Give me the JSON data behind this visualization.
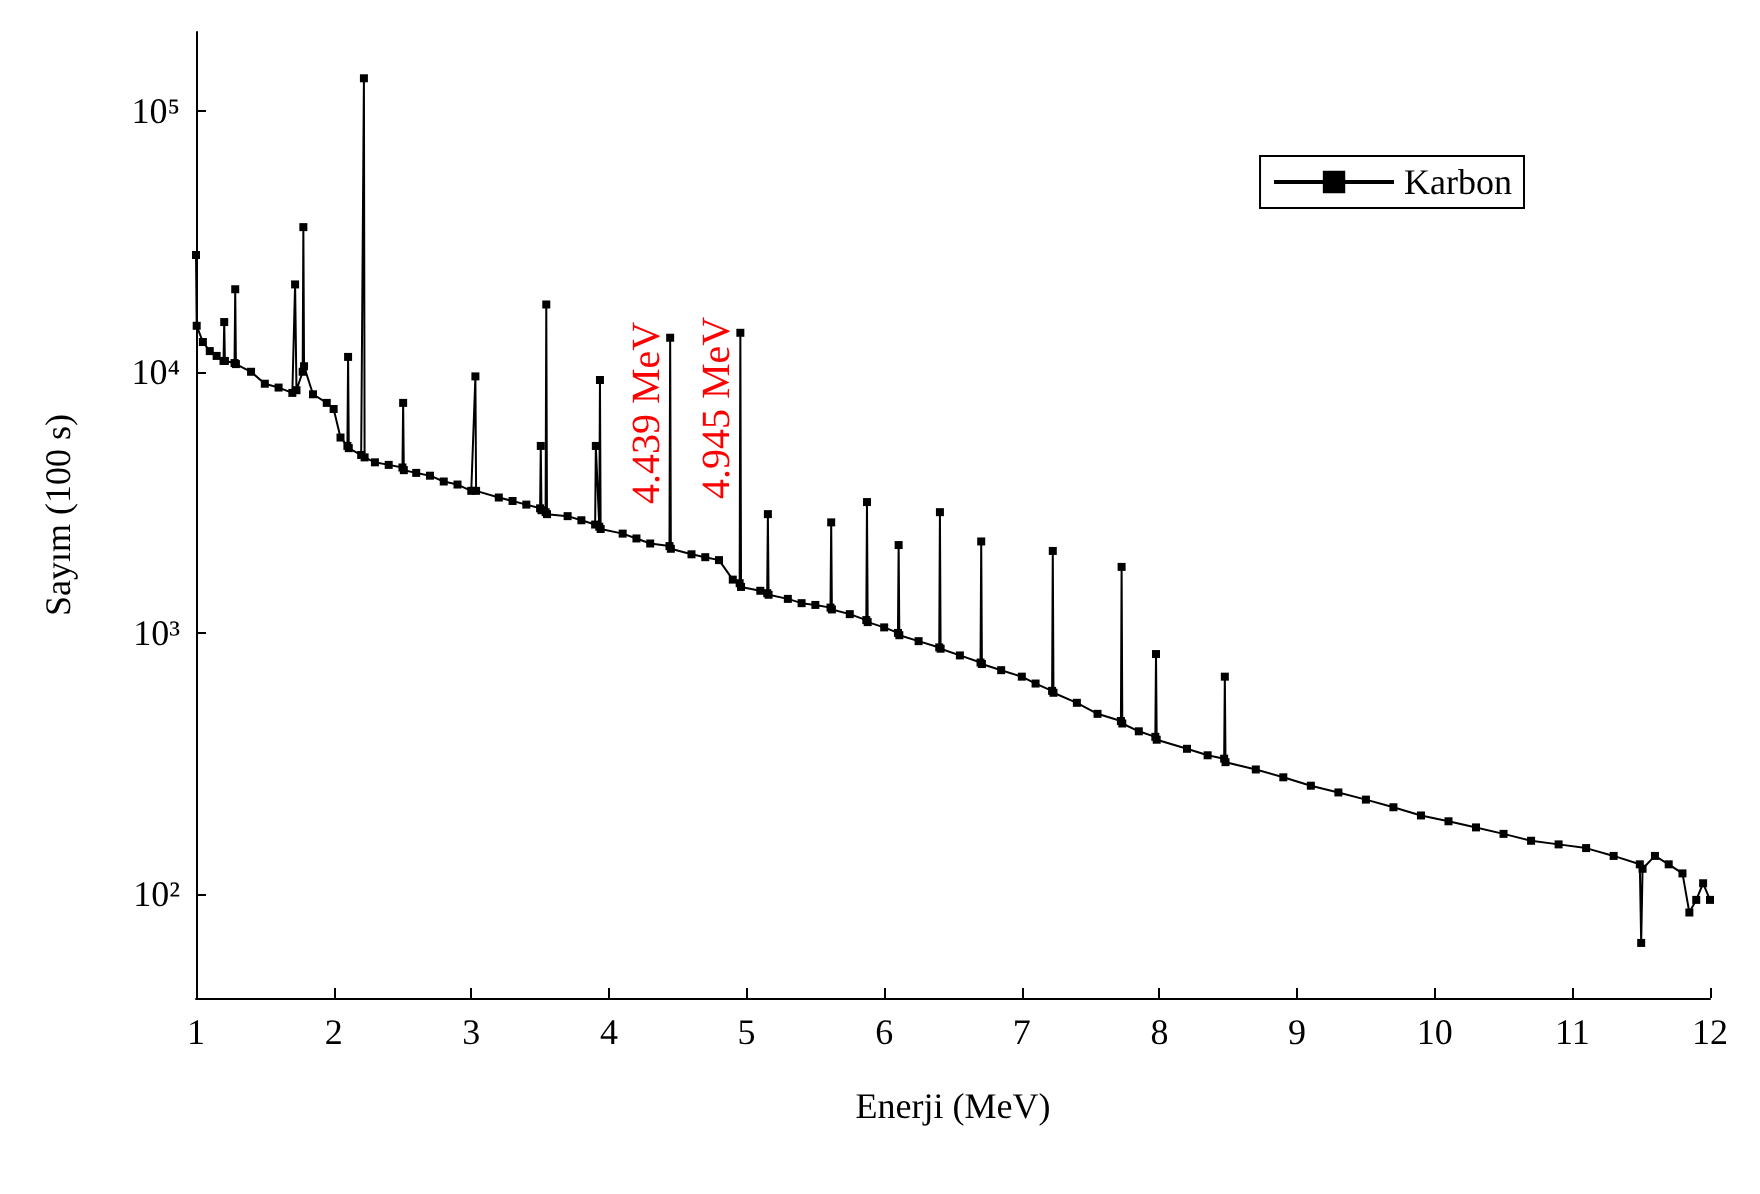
{
  "chart_data": {
    "type": "line",
    "xlabel": "Enerji (MeV)",
    "ylabel": "Sayım (100 s)",
    "log": "y",
    "grid": false,
    "legend": "top right",
    "marker": "square",
    "line_style": "solid",
    "xlim": [
      1,
      12
    ],
    "xticks": [
      1,
      2,
      3,
      4,
      5,
      6,
      7,
      8,
      9,
      10,
      11,
      12
    ],
    "ylim": [
      40,
      200000
    ],
    "yticks": [
      {
        "value": 100,
        "label": "10²"
      },
      {
        "value": 1000,
        "label": "10³"
      },
      {
        "value": 10000,
        "label": "10⁴"
      },
      {
        "value": 100000,
        "label": "10⁵"
      }
    ],
    "annotations": [
      {
        "text": "4.439 MeV",
        "x": 4.439,
        "y": 13500
      },
      {
        "text": "4.945 MeV",
        "x": 4.945,
        "y": 14100
      }
    ],
    "series": [
      {
        "name": "Karbon",
        "color": "#000000",
        "x": [
          1.0,
          1.005,
          1.05,
          1.1,
          1.15,
          1.2,
          1.205,
          1.21,
          1.28,
          1.285,
          1.29,
          1.4,
          1.5,
          1.6,
          1.7,
          1.72,
          1.73,
          1.775,
          1.78,
          1.785,
          1.85,
          1.95,
          2.0,
          2.05,
          2.1,
          2.105,
          2.11,
          2.2,
          2.22,
          2.225,
          2.3,
          2.4,
          2.5,
          2.505,
          2.51,
          2.6,
          2.7,
          2.8,
          2.9,
          3.0,
          3.03,
          3.035,
          3.2,
          3.3,
          3.4,
          3.5,
          3.505,
          3.51,
          3.54,
          3.545,
          3.55,
          3.7,
          3.8,
          3.9,
          3.905,
          3.93,
          3.935,
          3.94,
          4.1,
          4.2,
          4.3,
          4.44,
          4.445,
          4.45,
          4.6,
          4.7,
          4.8,
          4.9,
          4.95,
          4.955,
          4.96,
          5.1,
          5.15,
          5.155,
          5.16,
          5.3,
          5.4,
          5.5,
          5.61,
          5.615,
          5.62,
          5.75,
          5.87,
          5.875,
          5.88,
          6.0,
          6.1,
          6.105,
          6.11,
          6.25,
          6.4,
          6.405,
          6.41,
          6.55,
          6.7,
          6.705,
          6.71,
          6.85,
          7.0,
          7.1,
          7.22,
          7.225,
          7.23,
          7.4,
          7.55,
          7.72,
          7.725,
          7.73,
          7.85,
          7.97,
          7.975,
          7.98,
          8.2,
          8.35,
          8.47,
          8.475,
          8.48,
          8.7,
          8.9,
          9.1,
          9.3,
          9.5,
          9.7,
          9.9,
          10.1,
          10.3,
          10.5,
          10.7,
          10.9,
          11.1,
          11.3,
          11.49,
          11.5,
          11.51,
          11.6,
          11.7,
          11.8,
          11.85,
          11.9,
          11.95,
          12.0
        ],
        "values": [
          28000,
          15000,
          13000,
          12000,
          11500,
          11000,
          15500,
          11000,
          10800,
          20700,
          10700,
          10000,
          9000,
          8700,
          8300,
          21600,
          8500,
          10000,
          35800,
          10500,
          8200,
          7600,
          7200,
          5600,
          5200,
          11400,
          5100,
          4800,
          133000,
          4700,
          4500,
          4400,
          4300,
          7600,
          4200,
          4100,
          4000,
          3800,
          3700,
          3500,
          9600,
          3500,
          3300,
          3200,
          3100,
          3000,
          5200,
          2950,
          2900,
          18100,
          2850,
          2800,
          2700,
          2600,
          5200,
          2550,
          9300,
          2500,
          2400,
          2300,
          2200,
          2150,
          13500,
          2100,
          2000,
          1950,
          1900,
          1600,
          1550,
          14100,
          1500,
          1450,
          1420,
          2850,
          1400,
          1350,
          1300,
          1280,
          1250,
          2650,
          1230,
          1180,
          1120,
          3170,
          1100,
          1050,
          1000,
          2170,
          980,
          930,
          880,
          2900,
          870,
          820,
          770,
          2240,
          760,
          720,
          680,
          640,
          600,
          2060,
          590,
          540,
          490,
          460,
          1790,
          450,
          420,
          400,
          830,
          390,
          360,
          340,
          330,
          680,
          320,
          300,
          280,
          260,
          245,
          230,
          215,
          200,
          190,
          180,
          170,
          160,
          155,
          150,
          140,
          130,
          65,
          125,
          140,
          130,
          120,
          85,
          95,
          110,
          95
        ]
      }
    ]
  }
}
